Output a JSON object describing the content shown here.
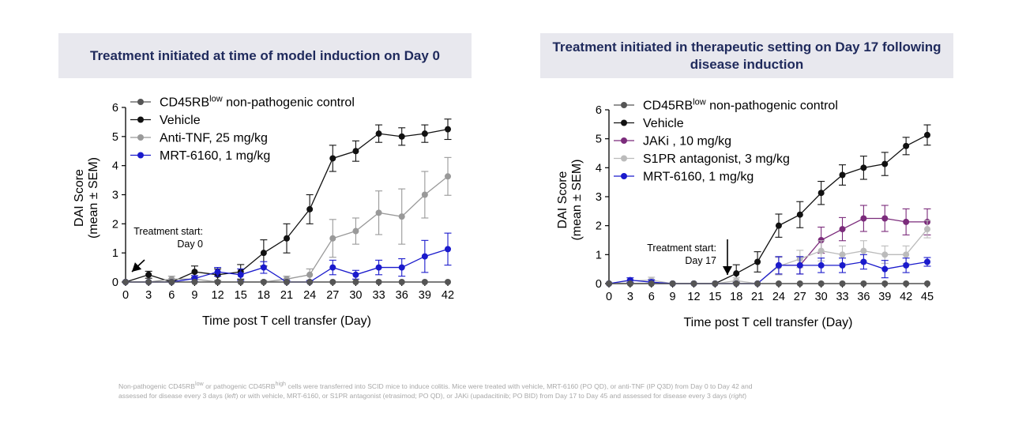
{
  "chart_data": [
    {
      "type": "line",
      "title": "Treatment initiated at time of model induction on Day 0",
      "xlabel": "Time post T cell transfer (Day)",
      "ylabel": [
        "DAI Score",
        "(mean ± SEM)"
      ],
      "xlim": [
        0,
        42
      ],
      "ylim": [
        0,
        6
      ],
      "xticks": [
        0,
        3,
        6,
        9,
        12,
        15,
        18,
        21,
        24,
        27,
        30,
        33,
        36,
        39,
        42
      ],
      "yticks": [
        0,
        1,
        2,
        3,
        4,
        5,
        6
      ],
      "legend_position": "top-left",
      "annotation": {
        "lines": [
          "Treatment start:",
          "Day 0"
        ],
        "arrow_day": 0
      },
      "series": [
        {
          "name": "Vehicle",
          "color": "#111111",
          "x": [
            0,
            3,
            6,
            9,
            12,
            15,
            18,
            21,
            24,
            27,
            30,
            33,
            36,
            39,
            42
          ],
          "y": [
            0,
            0.25,
            0,
            0.35,
            0.25,
            0.35,
            1.0,
            1.5,
            2.5,
            4.25,
            4.5,
            5.1,
            5.0,
            5.1,
            5.25
          ],
          "err": [
            0,
            0.12,
            0.05,
            0.2,
            0.2,
            0.25,
            0.45,
            0.5,
            0.5,
            0.45,
            0.35,
            0.3,
            0.3,
            0.3,
            0.35
          ]
        },
        {
          "name": "Anti-TNF, 25 mg/kg",
          "color": "#999999",
          "x": [
            0,
            3,
            6,
            9,
            12,
            15,
            18,
            21,
            24,
            27,
            30,
            33,
            36,
            39,
            42
          ],
          "y": [
            0,
            0,
            0.1,
            0.1,
            0,
            0,
            0,
            0.1,
            0.25,
            1.5,
            1.75,
            2.38,
            2.25,
            3.0,
            3.63
          ],
          "err": [
            0,
            0,
            0.1,
            0.1,
            0.05,
            0.05,
            0.05,
            0.1,
            0.2,
            0.65,
            0.45,
            0.75,
            0.95,
            0.8,
            0.65
          ]
        },
        {
          "name": "MRT-6160, 1 mg/kg",
          "color": "#1a1acc",
          "x": [
            0,
            3,
            6,
            9,
            12,
            15,
            18,
            21,
            24,
            27,
            30,
            33,
            36,
            39,
            42
          ],
          "y": [
            0,
            0,
            0,
            0.12,
            0.35,
            0.25,
            0.5,
            0,
            0,
            0.5,
            0.25,
            0.5,
            0.5,
            0.88,
            1.13
          ],
          "err": [
            0,
            0,
            0,
            0.1,
            0.15,
            0.2,
            0.2,
            0.05,
            0.05,
            0.25,
            0.15,
            0.25,
            0.3,
            0.55,
            0.55
          ]
        },
        {
          "name": "CD45RB",
          "name_sup": "low",
          "name_suffix": " non-pathogenic control",
          "color": "#555555",
          "x": [
            0,
            3,
            6,
            9,
            12,
            15,
            18,
            21,
            24,
            27,
            30,
            33,
            36,
            39,
            42
          ],
          "y": [
            0,
            0,
            0,
            0,
            0,
            0,
            0,
            0,
            0,
            0,
            0,
            0,
            0,
            0,
            0
          ],
          "err": [
            0,
            0,
            0,
            0,
            0,
            0,
            0,
            0,
            0,
            0,
            0,
            0,
            0,
            0,
            0
          ]
        }
      ],
      "legend_order": [
        3,
        0,
        1,
        2
      ]
    },
    {
      "type": "line",
      "title": "Treatment initiated in therapeutic setting on Day 17 following disease induction",
      "xlabel": "Time post T cell transfer (Day)",
      "ylabel": [
        "DAI Score",
        "(mean ± SEM)"
      ],
      "xlim": [
        0,
        45
      ],
      "ylim": [
        0,
        6
      ],
      "xticks": [
        0,
        3,
        6,
        9,
        12,
        15,
        18,
        21,
        24,
        27,
        30,
        33,
        36,
        39,
        42,
        45
      ],
      "yticks": [
        0,
        1,
        2,
        3,
        4,
        5,
        6
      ],
      "legend_position": "top-left",
      "annotation": {
        "lines": [
          "Treatment start:",
          "Day 17"
        ],
        "arrow_day": 17
      },
      "series": [
        {
          "name": "Vehicle",
          "color": "#111111",
          "x": [
            0,
            3,
            6,
            9,
            12,
            15,
            18,
            21,
            24,
            27,
            30,
            33,
            36,
            39,
            42,
            45
          ],
          "y": [
            0,
            0,
            0,
            0,
            0,
            0,
            0.35,
            0.75,
            2.0,
            2.38,
            3.13,
            3.75,
            4.0,
            4.13,
            4.75,
            5.13
          ],
          "err": [
            0,
            0,
            0,
            0,
            0,
            0,
            0.3,
            0.35,
            0.4,
            0.45,
            0.4,
            0.35,
            0.4,
            0.4,
            0.3,
            0.35
          ]
        },
        {
          "name": "JAKi , 10 mg/kg",
          "color": "#7b2b7b",
          "x": [
            24,
            27,
            30,
            33,
            36,
            39,
            42,
            45
          ],
          "y": [
            0.63,
            0.63,
            1.5,
            1.88,
            2.25,
            2.25,
            2.13,
            2.13
          ],
          "err": [
            0.3,
            0.3,
            0.45,
            0.4,
            0.45,
            0.45,
            0.45,
            0.45
          ]
        },
        {
          "name": "S1PR antagonist, 3 mg/kg",
          "color": "#bbbbbb",
          "x": [
            0,
            3,
            6,
            9,
            12,
            15,
            18,
            21,
            24,
            27,
            30,
            33,
            36,
            39,
            42,
            45
          ],
          "y": [
            0,
            0.1,
            0.12,
            0,
            0,
            0,
            0.1,
            0,
            0.6,
            0.85,
            1.13,
            1.0,
            1.13,
            1.0,
            1.0,
            1.88
          ],
          "err": [
            0,
            0.05,
            0.1,
            0,
            0,
            0,
            0.1,
            0,
            0.3,
            0.3,
            0.35,
            0.3,
            0.35,
            0.3,
            0.3,
            0.3
          ]
        },
        {
          "name": "MRT-6160, 1 mg/kg",
          "color": "#1a1acc",
          "x": [
            0,
            3,
            6,
            9,
            12,
            15,
            18,
            21,
            24,
            27,
            30,
            33,
            36,
            39,
            42,
            45
          ],
          "y": [
            0,
            0.12,
            0.05,
            0,
            0,
            0,
            0,
            0,
            0.63,
            0.63,
            0.63,
            0.63,
            0.75,
            0.5,
            0.63,
            0.75
          ],
          "err": [
            0,
            0.08,
            0.08,
            0,
            0,
            0,
            0,
            0,
            0.3,
            0.3,
            0.25,
            0.25,
            0.25,
            0.3,
            0.25,
            0.15
          ]
        },
        {
          "name": "CD45RB",
          "name_sup": "low",
          "name_suffix": " non-pathogenic control",
          "color": "#555555",
          "x": [
            0,
            3,
            6,
            9,
            12,
            15,
            18,
            21,
            24,
            27,
            30,
            33,
            36,
            39,
            42,
            45
          ],
          "y": [
            0,
            0,
            0,
            0,
            0,
            0,
            0,
            0,
            0,
            0,
            0,
            0,
            0,
            0,
            0,
            0
          ],
          "err": [
            0,
            0,
            0,
            0,
            0,
            0,
            0,
            0,
            0,
            0,
            0,
            0,
            0,
            0,
            0,
            0
          ]
        }
      ],
      "legend_order": [
        4,
        0,
        1,
        2,
        3
      ]
    }
  ],
  "footnote": {
    "line1_parts": [
      "Non-pathogenic CD45RB",
      "low",
      " or pathogenic CD45RB",
      "high",
      " cells were transferred into SCID mice to induce colitis. Mice were treated with vehicle, MRT-6160 (PO QD), or anti-TNF (IP Q3D) from Day 0 to Day 42 and"
    ],
    "line2_parts": [
      "assessed for disease every 3 days (",
      "left",
      ") or with vehicle, MRT-6160, or S1PR antagonist (etrasimod; PO QD), or JAKi (upadacitinib; PO BID) from Day 17 to Day 45 and assessed for disease every 3 days (",
      "right",
      ")"
    ]
  }
}
